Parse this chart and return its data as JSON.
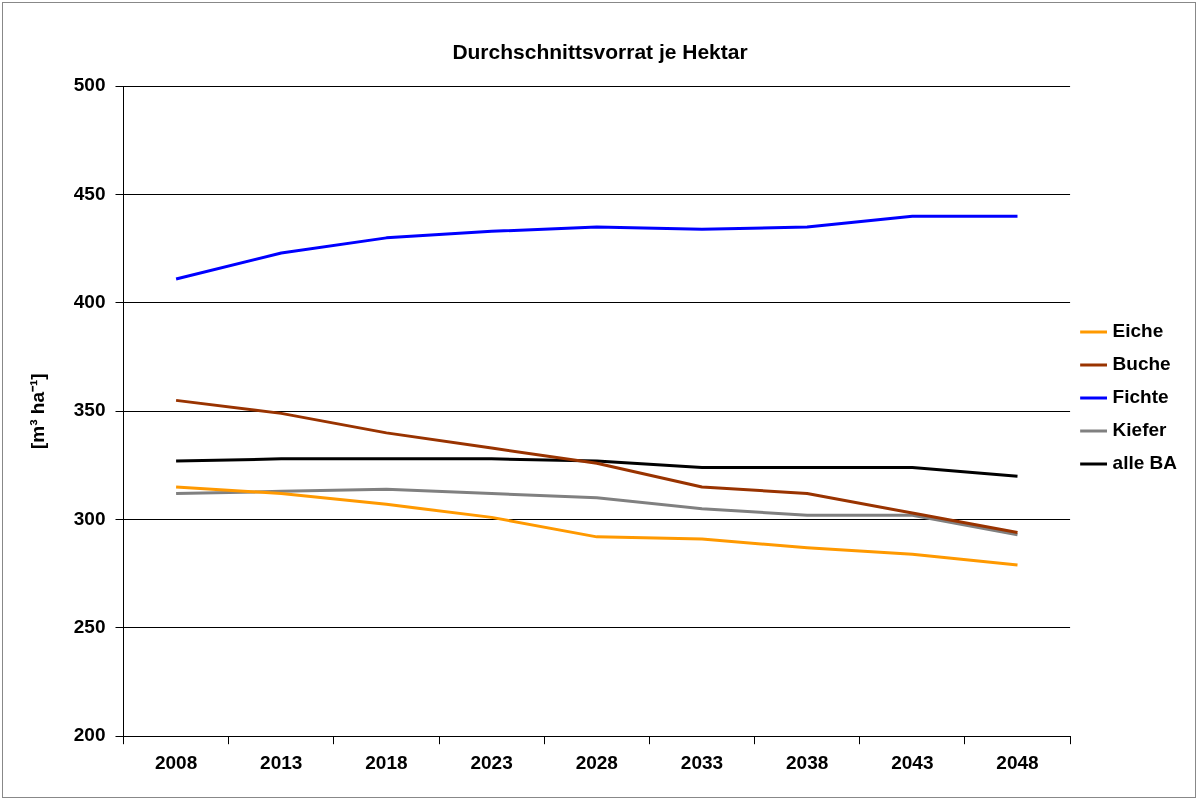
{
  "chart_data": {
    "type": "line",
    "title": "Durchschnittsvorrat je Hektar",
    "ylabel": "[m³ ha⁻¹]",
    "categories": [
      "2008",
      "2013",
      "2018",
      "2023",
      "2028",
      "2033",
      "2038",
      "2043",
      "2048"
    ],
    "series": [
      {
        "name": "Eiche",
        "color": "#ff9900",
        "values": [
          315,
          312,
          307,
          301,
          292,
          291,
          287,
          284,
          279
        ]
      },
      {
        "name": "Buche",
        "color": "#993300",
        "values": [
          355,
          349,
          340,
          333,
          326,
          315,
          312,
          303,
          294
        ]
      },
      {
        "name": "Fichte",
        "color": "#0000ff",
        "values": [
          411,
          423,
          430,
          433,
          435,
          434,
          435,
          440,
          440
        ]
      },
      {
        "name": "Kiefer",
        "color": "#808080",
        "values": [
          312,
          313,
          314,
          312,
          310,
          305,
          302,
          302,
          293
        ]
      },
      {
        "name": "alle BA",
        "color": "#000000",
        "values": [
          327,
          328,
          328,
          328,
          327,
          324,
          324,
          324,
          320
        ]
      }
    ],
    "ylim": [
      200,
      500
    ],
    "yticks": [
      200,
      250,
      300,
      350,
      400,
      450,
      500
    ],
    "grid": "y",
    "legend": "right",
    "marker": "none",
    "line_style": "solid"
  }
}
